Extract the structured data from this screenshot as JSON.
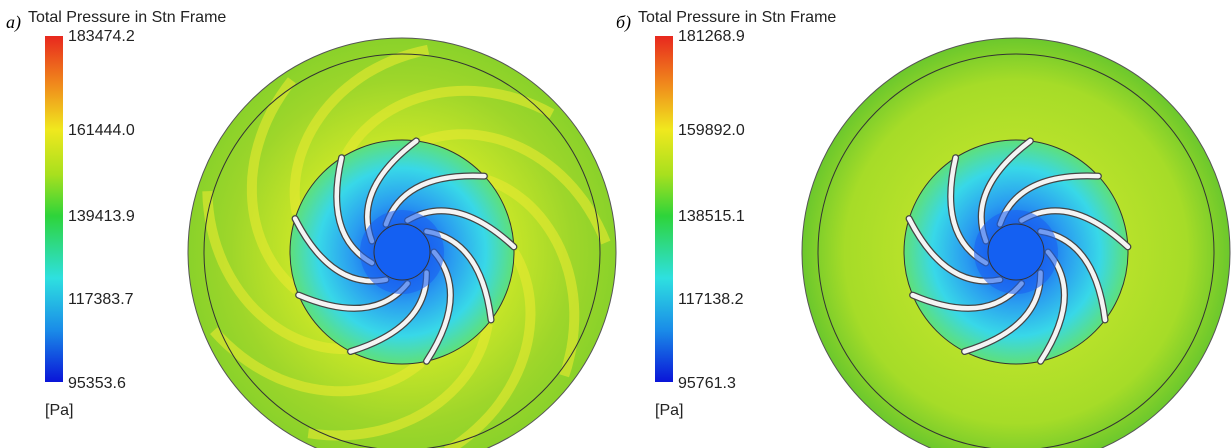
{
  "panels": [
    {
      "label": "а)",
      "title": "Total Pressure in Stn Frame",
      "ticks": [
        "183474.2",
        "161444.0",
        "139413.9",
        "117383.7",
        "95353.6"
      ],
      "unit": "[Pa]"
    },
    {
      "label": "б)",
      "title": "Total Pressure in Stn Frame",
      "ticks": [
        "181268.9",
        "159892.0",
        "138515.1",
        "117138.2",
        "95761.3"
      ],
      "unit": "[Pa]"
    }
  ]
}
